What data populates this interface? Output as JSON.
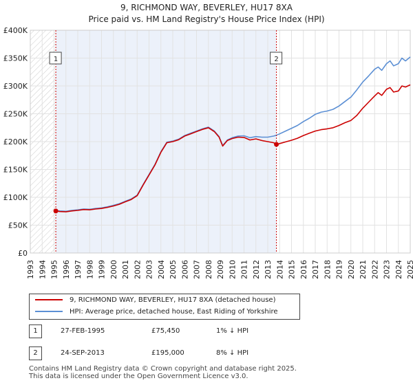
{
  "title_line1": "9, RICHMOND WAY, BEVERLEY, HU17 8XA",
  "title_line2": "Price paid vs. HM Land Registry's House Price Index (HPI)",
  "legend": [
    {
      "label": "9, RICHMOND WAY, BEVERLEY, HU17 8XA (detached house)",
      "color": "#cc0000"
    },
    {
      "label": "HPI: Average price, detached house, East Riding of Yorkshire",
      "color": "#5b8fd4"
    }
  ],
  "transactions": [
    {
      "num": "1",
      "date": "27-FEB-1995",
      "price": "£75,450",
      "hpi_diff": "1% ↓ HPI"
    },
    {
      "num": "2",
      "date": "24-SEP-2013",
      "price": "£195,000",
      "hpi_diff": "8% ↓ HPI"
    }
  ],
  "footer_line1": "Contains HM Land Registry data © Crown copyright and database right 2025.",
  "footer_line2": "This data is licensed under the Open Government Licence v3.0.",
  "chart_data": {
    "type": "line",
    "title": "9, RICHMOND WAY, BEVERLEY, HU17 8XA — Price paid vs. HM Land Registry's House Price Index (HPI)",
    "xlim": [
      1993,
      2025
    ],
    "ylim": [
      0,
      400000
    ],
    "yticks": [
      0,
      50000,
      100000,
      150000,
      200000,
      250000,
      300000,
      350000,
      400000
    ],
    "ytick_labels": [
      "£0",
      "£50K",
      "£100K",
      "£150K",
      "£200K",
      "£250K",
      "£300K",
      "£350K",
      "£400K"
    ],
    "xticks": [
      1993,
      1994,
      1995,
      1996,
      1997,
      1998,
      1999,
      2000,
      2001,
      2002,
      2003,
      2004,
      2005,
      2006,
      2007,
      2008,
      2009,
      2010,
      2011,
      2012,
      2013,
      2014,
      2015,
      2016,
      2017,
      2018,
      2019,
      2020,
      2021,
      2022,
      2023,
      2024,
      2025
    ],
    "xtick_labels": [
      "1993",
      "1994",
      "1995",
      "1996",
      "1997",
      "1998",
      "1999",
      "2000",
      "2001",
      "2002",
      "2003",
      "2004",
      "2005",
      "2006",
      "2007",
      "2008",
      "2009",
      "2010",
      "2011",
      "2012",
      "2013",
      "2014",
      "2015",
      "2016",
      "2017",
      "2018",
      "2019",
      "2020",
      "2021",
      "2022",
      "2023",
      "2024",
      "2025"
    ],
    "grid": true,
    "hatched_region": [
      1993,
      1995.15
    ],
    "shaded_region": [
      1995.15,
      2013.73
    ],
    "sale_markers": [
      {
        "label": "1",
        "x": 1995.15,
        "y": 75450
      },
      {
        "label": "2",
        "x": 2013.73,
        "y": 195000
      }
    ],
    "series": [
      {
        "name": "9, RICHMOND WAY, BEVERLEY, HU17 8XA (detached house)",
        "color": "#cc0000",
        "x": [
          1995.15,
          1995.5,
          1996,
          1996.5,
          1997,
          1997.5,
          1998,
          1998.5,
          1999,
          1999.5,
          2000,
          2000.5,
          2001,
          2001.5,
          2002,
          2002.5,
          2003,
          2003.5,
          2004,
          2004.5,
          2005,
          2005.5,
          2006,
          2006.5,
          2007,
          2007.5,
          2008,
          2008.5,
          2008.9,
          2009.2,
          2009.6,
          2010,
          2010.5,
          2011,
          2011.5,
          2012,
          2012.5,
          2013,
          2013.5,
          2013.73,
          2014,
          2014.5,
          2015,
          2015.5,
          2016,
          2016.5,
          2017,
          2017.5,
          2018,
          2018.5,
          2019,
          2019.5,
          2020,
          2020.5,
          2021,
          2021.5,
          2022,
          2022.3,
          2022.6,
          2023,
          2023.3,
          2023.6,
          2024,
          2024.3,
          2024.6,
          2025
        ],
        "y": [
          75450,
          74500,
          74000,
          75500,
          76500,
          78000,
          77500,
          79000,
          80000,
          82000,
          84500,
          87500,
          92000,
          96000,
          103000,
          122000,
          140000,
          158000,
          181000,
          198000,
          200000,
          203500,
          210000,
          214000,
          218000,
          222000,
          225000,
          218000,
          208000,
          192000,
          202000,
          205500,
          208000,
          207500,
          203000,
          205000,
          202000,
          200000,
          198000,
          195000,
          196500,
          199500,
          202500,
          206000,
          211000,
          215000,
          219000,
          221500,
          223000,
          225000,
          229000,
          234000,
          238000,
          247000,
          260000,
          271000,
          282000,
          288000,
          283000,
          294000,
          297000,
          289000,
          291000,
          300000,
          298000,
          302000
        ]
      },
      {
        "name": "HPI: Average price, detached house, East Riding of Yorkshire",
        "color": "#5b8fd4",
        "x": [
          1995.15,
          1995.5,
          1996,
          1996.5,
          1997,
          1997.5,
          1998,
          1998.5,
          1999,
          1999.5,
          2000,
          2000.5,
          2001,
          2001.5,
          2002,
          2002.5,
          2003,
          2003.5,
          2004,
          2004.5,
          2005,
          2005.5,
          2006,
          2006.5,
          2007,
          2007.5,
          2008,
          2008.5,
          2008.9,
          2009.2,
          2009.6,
          2010,
          2010.5,
          2011,
          2011.5,
          2012,
          2012.5,
          2013,
          2013.5,
          2013.73,
          2014,
          2014.5,
          2015,
          2015.5,
          2016,
          2016.5,
          2017,
          2017.5,
          2018,
          2018.5,
          2019,
          2019.5,
          2020,
          2020.5,
          2021,
          2021.5,
          2022,
          2022.3,
          2022.6,
          2023,
          2023.3,
          2023.6,
          2024,
          2024.3,
          2024.6,
          2025
        ],
        "y": [
          76200,
          75500,
          75000,
          76500,
          77500,
          79000,
          78500,
          80000,
          81000,
          83000,
          85500,
          88500,
          93000,
          97000,
          104000,
          123000,
          141000,
          159000,
          182000,
          199000,
          201000,
          204500,
          211000,
          215000,
          219000,
          223000,
          226000,
          219000,
          209000,
          193000,
          203000,
          207000,
          210000,
          210500,
          207000,
          209000,
          208000,
          208000,
          210000,
          211500,
          214000,
          219000,
          224000,
          229000,
          236000,
          242000,
          249000,
          253000,
          255000,
          258000,
          264000,
          272000,
          280000,
          293000,
          307000,
          318000,
          330000,
          334000,
          328000,
          340000,
          345000,
          336000,
          340000,
          350000,
          345000,
          352000
        ]
      }
    ]
  }
}
